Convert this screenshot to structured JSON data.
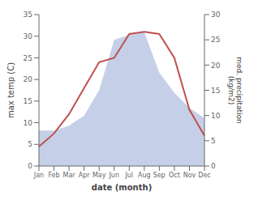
{
  "chart_data": {
    "type": "line",
    "categories": [
      "Jan",
      "Feb",
      "Mar",
      "Apr",
      "May",
      "Jun",
      "Jul",
      "Aug",
      "Sep",
      "Oct",
      "Nov",
      "Dec"
    ],
    "x_label": "date (month)",
    "y_label": "max temp (C)",
    "y2_label": "med. precipitation\n(kg/m2)",
    "ylim": [
      0,
      35
    ],
    "yticks": [
      0,
      5,
      10,
      15,
      20,
      25,
      30,
      35
    ],
    "y2lim": [
      0,
      30
    ],
    "y2ticks": [
      0,
      5,
      10,
      15,
      20,
      25,
      30
    ],
    "grid": false,
    "series": [
      {
        "type": "area",
        "axis": "y2",
        "color": "#c5d0e8",
        "values": [
          7.0,
          7.0,
          8.0,
          10.0,
          15.0,
          25.0,
          26.0,
          26.5,
          18.5,
          14.5,
          11.5,
          9.5
        ]
      },
      {
        "type": "line",
        "color": "#c0504d",
        "values": [
          4.5,
          7.5,
          12.0,
          18.0,
          24.0,
          25.0,
          30.5,
          31.0,
          30.5,
          25.0,
          13.0,
          7.0
        ]
      }
    ]
  }
}
